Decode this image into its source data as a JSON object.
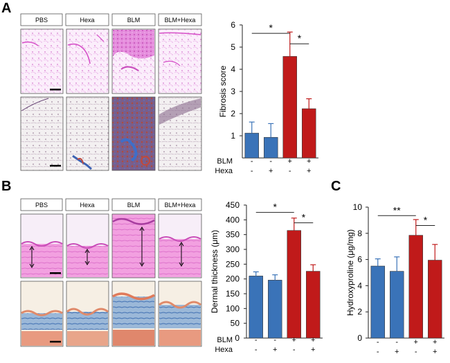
{
  "figure": {
    "panels": [
      {
        "letter": "A",
        "columns": [
          "PBS",
          "Hexa",
          "BLM",
          "BLM+Hexa"
        ]
      },
      {
        "letter": "B",
        "columns": [
          "PBS",
          "Hexa",
          "BLM",
          "BLM+Hexa"
        ]
      },
      {
        "letter": "C"
      }
    ]
  },
  "colors": {
    "control": "#3a73b8",
    "blm": "#c01a1a",
    "he_stain": "#e27ad8",
    "trichrome_blue": "#4a78c4",
    "trichrome_red": "#c05040"
  },
  "chart_data": [
    {
      "id": "fibrosis",
      "type": "bar",
      "categories": [
        "PBS",
        "Hexa",
        "BLM",
        "BLM+Hexa"
      ],
      "values": [
        1.12,
        0.93,
        4.58,
        2.22
      ],
      "errors": [
        0.5,
        0.62,
        1.1,
        0.45
      ],
      "colors": [
        "control",
        "control",
        "blm",
        "blm"
      ],
      "ylabel": "Fibrosis score",
      "ylim": [
        0,
        6
      ],
      "yticks": [
        1,
        2,
        3,
        4,
        5,
        6
      ],
      "group_rows": [
        {
          "label": "BLM",
          "signs": [
            "-",
            "-",
            "+",
            "+"
          ]
        },
        {
          "label": "Hexa",
          "signs": [
            "-",
            "+",
            "-",
            "+"
          ]
        }
      ],
      "significance": [
        {
          "pair": [
            0,
            2
          ],
          "level": 5.62,
          "label": "*"
        },
        {
          "pair": [
            2,
            3
          ],
          "level": 5.15,
          "label": "*"
        }
      ]
    },
    {
      "id": "dermal",
      "type": "bar",
      "categories": [
        "PBS",
        "Hexa",
        "BLM",
        "BLM+Hexa"
      ],
      "values": [
        210,
        196,
        364,
        226
      ],
      "errors": [
        14,
        18,
        42,
        22
      ],
      "colors": [
        "control",
        "control",
        "blm",
        "blm"
      ],
      "ylabel": "Dermal thickness (μm)",
      "ylim": [
        0,
        450
      ],
      "yticks": [
        0,
        50,
        100,
        150,
        200,
        250,
        300,
        350,
        400,
        450
      ],
      "group_rows": [
        {
          "label": "BLM",
          "signs": [
            "-",
            "-",
            "+",
            "+"
          ]
        },
        {
          "label": "Hexa",
          "signs": [
            "-",
            "+",
            "-",
            "+"
          ]
        }
      ],
      "significance": [
        {
          "pair": [
            0,
            2
          ],
          "level": 425,
          "label": "*"
        },
        {
          "pair": [
            2,
            3
          ],
          "level": 390,
          "label": "*"
        }
      ]
    },
    {
      "id": "hydroxyproline",
      "type": "bar",
      "categories": [
        "PBS",
        "Hexa",
        "BLM",
        "BLM+Hexa"
      ],
      "values": [
        5.5,
        5.1,
        7.85,
        5.95
      ],
      "errors": [
        0.55,
        1.1,
        1.2,
        1.2
      ],
      "colors": [
        "control",
        "control",
        "blm",
        "blm"
      ],
      "ylabel": "Hydroxyproline (μg/mg)",
      "ylim": [
        0,
        10
      ],
      "yticks": [
        0,
        2,
        4,
        6,
        8,
        10
      ],
      "group_rows": [
        {
          "label": "",
          "signs": [
            "-",
            "-",
            "+",
            "+"
          ]
        },
        {
          "label": "",
          "signs": [
            "-",
            "+",
            "-",
            "+"
          ]
        }
      ],
      "significance": [
        {
          "pair": [
            0,
            2
          ],
          "level": 9.35,
          "label": "**"
        },
        {
          "pair": [
            2,
            3
          ],
          "level": 8.6,
          "label": "*"
        }
      ]
    }
  ]
}
